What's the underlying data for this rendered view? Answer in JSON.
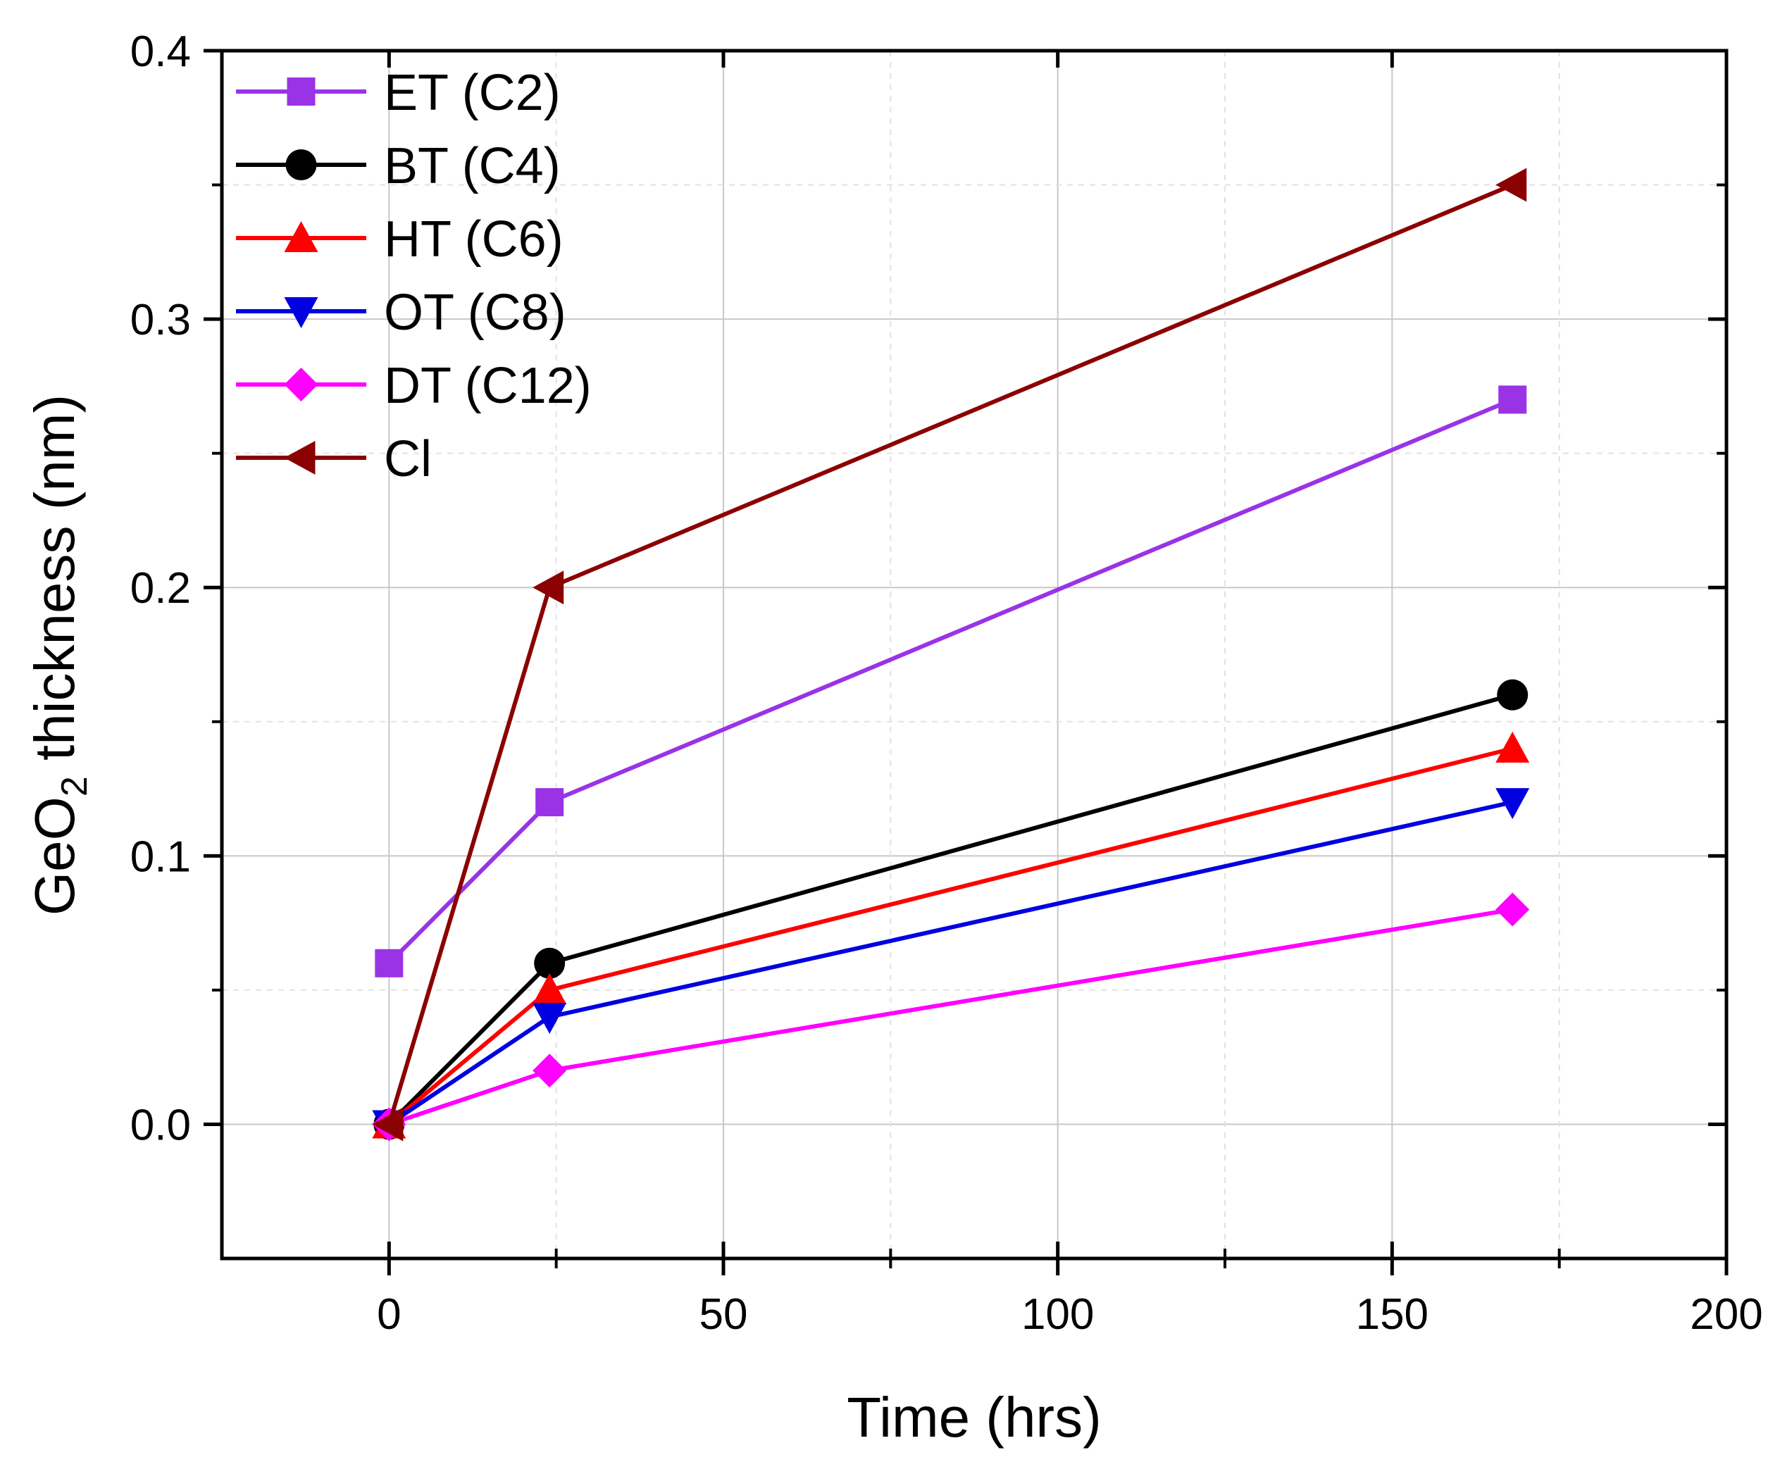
{
  "chart_data": {
    "type": "line",
    "xlabel": "Time (hrs)",
    "ylabel_main": "GeO",
    "ylabel_sub": "2",
    "ylabel_rest": " thickness (nm)",
    "xlim": [
      -25,
      200
    ],
    "ylim": [
      -0.05,
      0.4
    ],
    "xticks": [
      0,
      50,
      100,
      150,
      200
    ],
    "xtick_labels": [
      "0",
      "50",
      "100",
      "150",
      "200"
    ],
    "yticks": [
      0.0,
      0.1,
      0.2,
      0.3,
      0.4
    ],
    "ytick_labels": [
      "0.0",
      "0.1",
      "0.2",
      "0.3",
      "0.4"
    ],
    "grid": true,
    "legend_position": "top-left",
    "x": [
      0,
      24,
      168
    ],
    "series": [
      {
        "name": "ET (C2)",
        "color": "#9a33e6",
        "marker": "square",
        "values": [
          0.06,
          0.12,
          0.27
        ]
      },
      {
        "name": "BT (C4)",
        "color": "#000000",
        "marker": "circle",
        "values": [
          0.0,
          0.06,
          0.16
        ]
      },
      {
        "name": "HT (C6)",
        "color": "#ff0000",
        "marker": "triangle-up",
        "values": [
          0.0,
          0.05,
          0.14
        ]
      },
      {
        "name": "OT (C8)",
        "color": "#0000e0",
        "marker": "triangle-down",
        "values": [
          0.0,
          0.04,
          0.12
        ]
      },
      {
        "name": "DT (C12)",
        "color": "#ff00ff",
        "marker": "diamond",
        "values": [
          0.0,
          0.02,
          0.08
        ]
      },
      {
        "name": "Cl",
        "color": "#8b0000",
        "marker": "triangle-left",
        "values": [
          0.0,
          0.2,
          0.35
        ]
      }
    ]
  }
}
